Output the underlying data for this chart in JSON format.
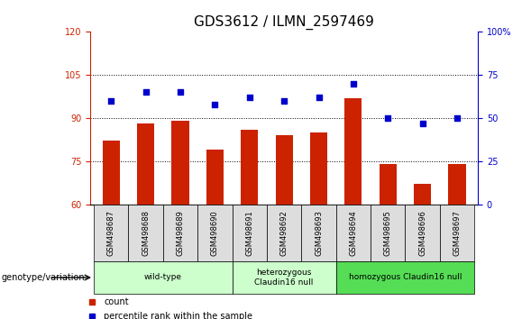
{
  "title": "GDS3612 / ILMN_2597469",
  "samples": [
    "GSM498687",
    "GSM498688",
    "GSM498689",
    "GSM498690",
    "GSM498691",
    "GSM498692",
    "GSM498693",
    "GSM498694",
    "GSM498695",
    "GSM498696",
    "GSM498697"
  ],
  "bar_values": [
    82,
    88,
    89,
    79,
    86,
    84,
    85,
    97,
    74,
    67,
    74
  ],
  "scatter_pct": [
    60,
    65,
    65,
    58,
    62,
    60,
    62,
    70,
    50,
    47,
    50
  ],
  "bar_color": "#cc2200",
  "scatter_color": "#0000cc",
  "ylim_left": [
    60,
    120
  ],
  "yticks_left": [
    60,
    75,
    90,
    105,
    120
  ],
  "ylim_right": [
    0,
    100
  ],
  "yticks_right": [
    0,
    25,
    50,
    75,
    100
  ],
  "ytick_labels_right": [
    "0",
    "25",
    "50",
    "75",
    "100%"
  ],
  "grid_lines": [
    75,
    90,
    105
  ],
  "group_configs": [
    {
      "start": 0,
      "end": 3,
      "label": "wild-type",
      "color": "#ccffcc"
    },
    {
      "start": 4,
      "end": 6,
      "label": "heterozygous\nClaudin16 null",
      "color": "#ccffcc"
    },
    {
      "start": 7,
      "end": 10,
      "label": "homozygous Claudin16 null",
      "color": "#55dd55"
    }
  ],
  "genotype_label": "genotype/variation",
  "legend_count_label": "count",
  "legend_pct_label": "percentile rank within the sample",
  "title_fontsize": 11,
  "tick_fontsize": 7,
  "axis_color_left": "#cc2200",
  "axis_color_right": "#0000cc",
  "cell_bg": "#d0d0d0",
  "right_ytick_labels": [
    "0",
    "25",
    "50",
    "75",
    "100%"
  ]
}
